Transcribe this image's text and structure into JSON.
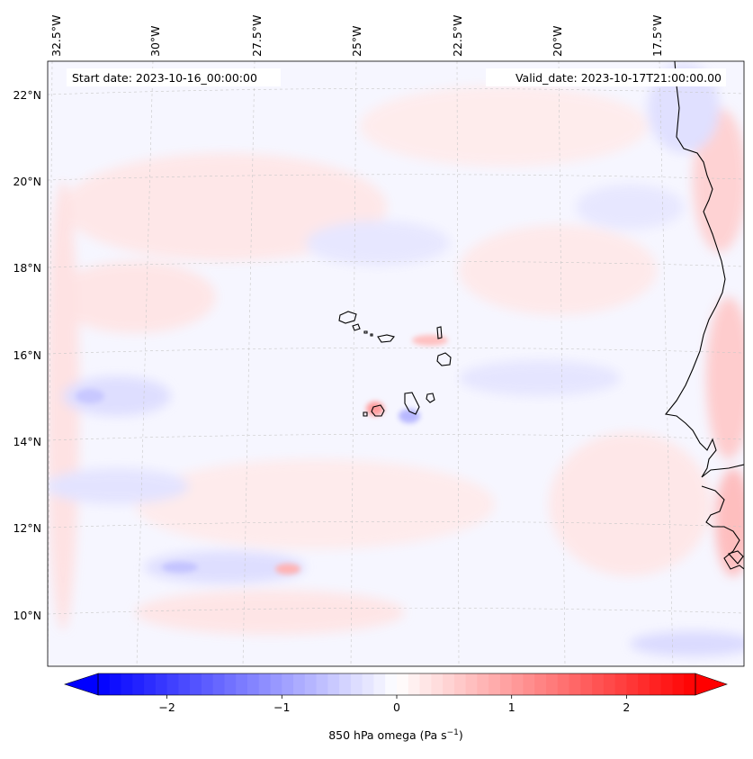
{
  "annotations": {
    "start_date": "Start date: 2023-10-16_00:00:00",
    "valid_date": "Valid_date: 2023-10-17T21:00:00.00"
  },
  "longitude_labels": [
    "32.5°W",
    "30°W",
    "27.5°W",
    "25°W",
    "22.5°W",
    "20°W",
    "17.5°W"
  ],
  "latitude_labels": [
    "22°N",
    "20°N",
    "18°N",
    "16°N",
    "14°N",
    "12°N",
    "10°N"
  ],
  "colorbar": {
    "ticks": [
      "−2",
      "−1",
      "0",
      "1",
      "2"
    ],
    "tick_values": [
      -2,
      -1,
      0,
      1,
      2
    ],
    "range": [
      -2.6,
      2.6
    ],
    "label_main": "850 hPa omega (Pa s",
    "label_sup": "−1",
    "label_end": ")",
    "colors": {
      "negative": "#0000ff",
      "zero": "#ffffff",
      "positive": "#ff0000"
    }
  },
  "colors": {
    "coastline": "#000000",
    "gridline": "#b0b0b0",
    "field_faint_blue": "#f3f3ff",
    "field_light_red": "#ffe8e8"
  }
}
